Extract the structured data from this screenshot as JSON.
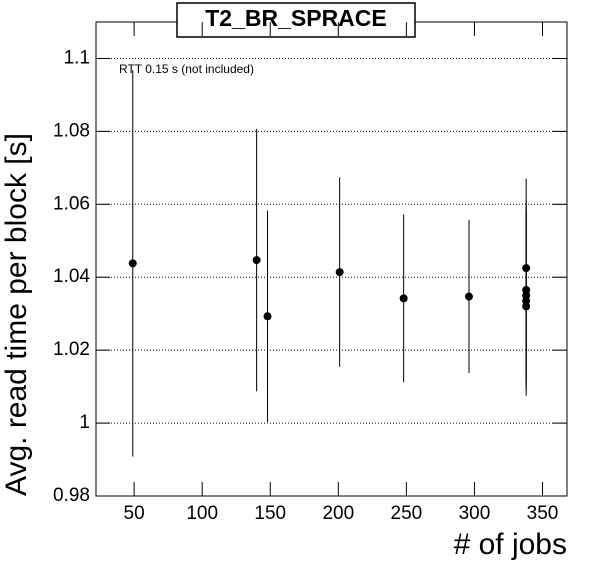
{
  "chart_data": {
    "type": "scatter",
    "title": "T2_BR_SPRACE",
    "annotation": "RTT 0.15 s (not included)",
    "x_label": "# of jobs",
    "y_label": "Avg. read time per block [s]",
    "series": [
      {
        "name": "T2_BR_SPRACE",
        "color": "#000000",
        "x": [
          49,
          140,
          148,
          201,
          248,
          296,
          338,
          338,
          338,
          338,
          338
        ],
        "values": [
          1.0438,
          1.0447,
          1.0293,
          1.0414,
          1.0342,
          1.0347,
          1.0425,
          1.0365,
          1.035,
          1.0335,
          1.032
        ],
        "errors": [
          0.053,
          0.036,
          0.029,
          0.026,
          0.023,
          0.021,
          0.0245,
          0.0245,
          0.0245,
          0.0245,
          0.0245
        ]
      }
    ],
    "xlim": [
      22,
      368
    ],
    "xticks": [
      50,
      100,
      150,
      200,
      250,
      300,
      350
    ],
    "ylim": [
      0.98,
      1.11
    ],
    "yticks": [
      0.98,
      1,
      1.02,
      1.04,
      1.06,
      1.08,
      1.1
    ],
    "grid": true
  }
}
